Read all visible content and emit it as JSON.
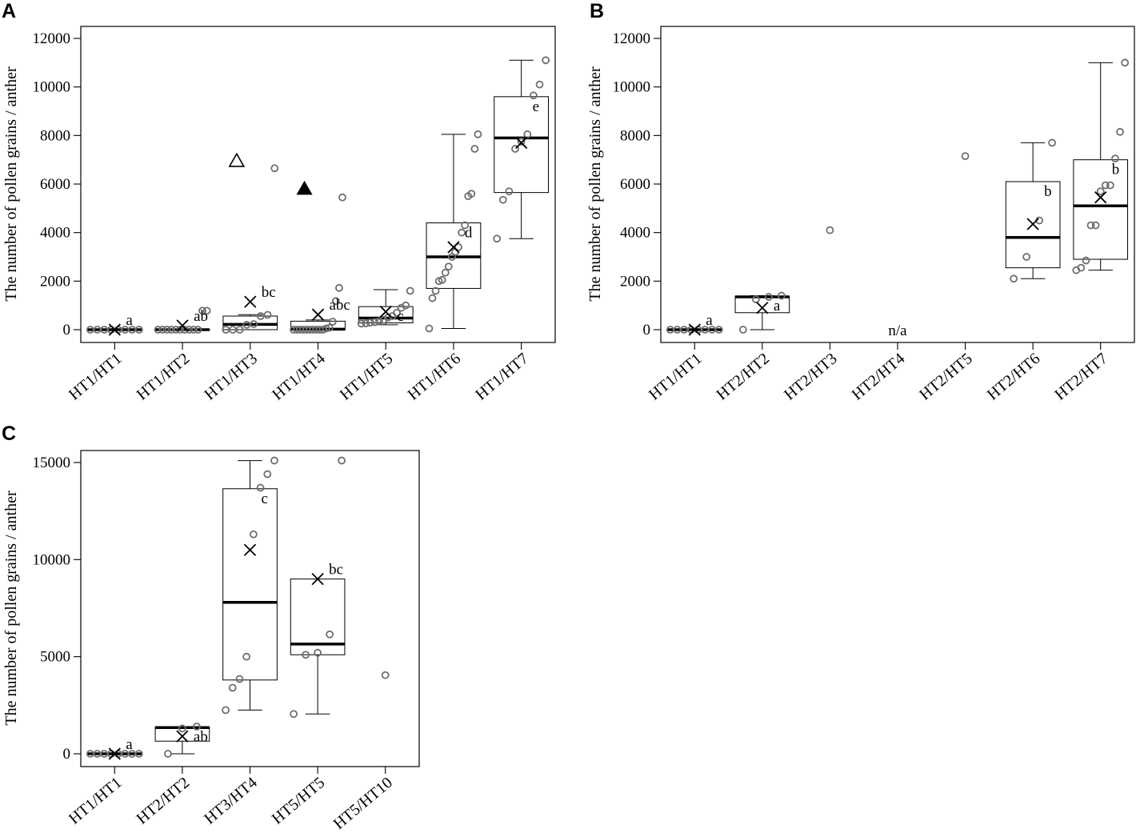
{
  "chart_data": [
    {
      "panel": "A",
      "type": "boxplot",
      "ylabel": "The number of pollen grains / anther",
      "ylim": [
        0,
        12000
      ],
      "yticks": [
        0,
        2000,
        4000,
        6000,
        8000,
        10000,
        12000
      ],
      "tick_labels": [
        "0",
        "2000",
        "4000",
        "6000",
        "8000",
        "10000",
        "12000"
      ],
      "groups": [
        {
          "name": "HT1/HT1",
          "points": [
            0,
            0,
            0,
            0,
            0,
            0,
            0,
            0
          ],
          "box": {
            "q1": 0,
            "median": 0,
            "q3": 0,
            "wlo": 0,
            "whi": 0
          },
          "mean": 0,
          "letter": "a"
        },
        {
          "name": "HT1/HT2",
          "points": [
            0,
            0,
            0,
            0,
            0,
            0,
            0,
            0,
            0,
            0,
            780,
            780
          ],
          "box": {
            "q1": 0,
            "median": 0,
            "q3": 0,
            "wlo": 0,
            "whi": 0
          },
          "mean": 170,
          "letter": "ab"
        },
        {
          "name": "HT1/HT3",
          "points": [
            0,
            0,
            0,
            200,
            230,
            560,
            610,
            6650
          ],
          "box": {
            "q1": 0,
            "median": 220,
            "q3": 560,
            "wlo": 0,
            "whi": 620
          },
          "mean": 1150,
          "letter": "bc"
        },
        {
          "name": "HT1/HT4",
          "points": [
            0,
            0,
            0,
            0,
            0,
            0,
            0,
            0,
            0,
            0,
            50,
            80,
            330,
            1180,
            1720,
            5450
          ],
          "box": {
            "q1": 0,
            "median": 20,
            "q3": 350,
            "wlo": 0,
            "whi": 400
          },
          "mean": 620,
          "letter": "abc"
        },
        {
          "name": "HT1/HT5",
          "points": [
            250,
            260,
            290,
            310,
            350,
            400,
            500,
            560,
            700,
            900,
            1000,
            1600
          ],
          "box": {
            "q1": 280,
            "median": 480,
            "q3": 950,
            "wlo": 200,
            "whi": 1650
          },
          "mean": 740,
          "letter": "c"
        },
        {
          "name": "HT1/HT6",
          "points": [
            50,
            1300,
            1600,
            2000,
            2050,
            2350,
            2600,
            3000,
            3200,
            3400,
            4000,
            4300,
            5500,
            5600,
            7450,
            8050
          ],
          "box": {
            "q1": 1700,
            "median": 3000,
            "q3": 4400,
            "wlo": 50,
            "whi": 8050
          },
          "mean": 3400,
          "letter": "d"
        },
        {
          "name": "HT1/HT7",
          "points": [
            3750,
            5350,
            5700,
            7450,
            7750,
            8050,
            9650,
            10100,
            11100
          ],
          "box": {
            "q1": 5650,
            "median": 7900,
            "q3": 9600,
            "wlo": 3750,
            "whi": 11100
          },
          "mean": 7700,
          "letter": "e"
        }
      ],
      "markers": [
        {
          "shape": "triangle-open",
          "group": "HT1/HT3",
          "offset": -0.2,
          "y": 6950
        },
        {
          "shape": "triangle-filled",
          "group": "HT1/HT4",
          "offset": -0.2,
          "y": 5800
        }
      ]
    },
    {
      "panel": "B",
      "type": "boxplot",
      "ylabel": "The number of pollen grains / anther",
      "ylim": [
        0,
        12000
      ],
      "yticks": [
        0,
        2000,
        4000,
        6000,
        8000,
        10000,
        12000
      ],
      "tick_labels": [
        "0",
        "2000",
        "4000",
        "6000",
        "8000",
        "10000",
        "12000"
      ],
      "groups": [
        {
          "name": "HT1/HT1",
          "points": [
            0,
            0,
            0,
            0,
            0,
            0,
            0,
            0
          ],
          "box": {
            "q1": 0,
            "median": 0,
            "q3": 0,
            "wlo": 0,
            "whi": 0
          },
          "mean": 0,
          "letter": "a"
        },
        {
          "name": "HT2/HT2",
          "points": [
            0,
            1250,
            1350,
            1400
          ],
          "box": {
            "q1": 700,
            "median": 1350,
            "q3": 1380,
            "wlo": 0,
            "whi": 1400
          },
          "mean": 900,
          "letter": "a"
        },
        {
          "name": "HT2/HT3",
          "points": [
            4100
          ],
          "box": null,
          "mean": null,
          "letter": ""
        },
        {
          "name": "HT2/HT4",
          "points": [],
          "box": null,
          "mean": null,
          "letter": "n/a"
        },
        {
          "name": "HT2/HT5",
          "points": [
            7150
          ],
          "box": null,
          "mean": null,
          "letter": ""
        },
        {
          "name": "HT2/HT6",
          "points": [
            2100,
            3000,
            4500,
            7700
          ],
          "box": {
            "q1": 2550,
            "median": 3800,
            "q3": 6100,
            "wlo": 2100,
            "whi": 7700
          },
          "mean": 4350,
          "letter": "b"
        },
        {
          "name": "HT2/HT7",
          "points": [
            2450,
            2550,
            2850,
            4300,
            4300,
            5700,
            5950,
            5950,
            7050,
            8150,
            11000
          ],
          "box": {
            "q1": 2900,
            "median": 5100,
            "q3": 7000,
            "wlo": 2450,
            "whi": 11000
          },
          "mean": 5450,
          "letter": "b"
        }
      ],
      "markers": []
    },
    {
      "panel": "C",
      "type": "boxplot",
      "ylabel": "The number of pollen grains / anther",
      "ylim": [
        0,
        15000
      ],
      "yticks": [
        0,
        5000,
        10000,
        15000
      ],
      "tick_labels": [
        "0",
        "5000",
        "10000",
        "15000"
      ],
      "groups": [
        {
          "name": "HT1/HT1",
          "points": [
            0,
            0,
            0,
            0,
            0,
            0,
            0,
            0
          ],
          "box": {
            "q1": 0,
            "median": 0,
            "q3": 0,
            "wlo": 0,
            "whi": 0
          },
          "mean": 0,
          "letter": "a"
        },
        {
          "name": "HT2/HT2",
          "points": [
            0,
            1300,
            1400
          ],
          "box": {
            "q1": 650,
            "median": 1350,
            "q3": 1380,
            "wlo": 0,
            "whi": 1400
          },
          "mean": 900,
          "letter": "ab"
        },
        {
          "name": "HT3/HT4",
          "points": [
            2250,
            3400,
            3850,
            5000,
            11300,
            13700,
            14400,
            15100
          ],
          "box": {
            "q1": 3800,
            "median": 7800,
            "q3": 13650,
            "wlo": 2250,
            "whi": 15100
          },
          "mean": 10500,
          "letter": "c"
        },
        {
          "name": "HT5/HT5",
          "points": [
            2050,
            5100,
            5200,
            6150,
            15100
          ],
          "box": {
            "q1": 5100,
            "median": 5650,
            "q3": 9000,
            "wlo": 2050,
            "whi": 9000
          },
          "mean": 9000,
          "letter": "bc"
        },
        {
          "name": "HT5/HT10",
          "points": [
            4050
          ],
          "box": null,
          "mean": null,
          "letter": ""
        }
      ],
      "markers": []
    }
  ]
}
